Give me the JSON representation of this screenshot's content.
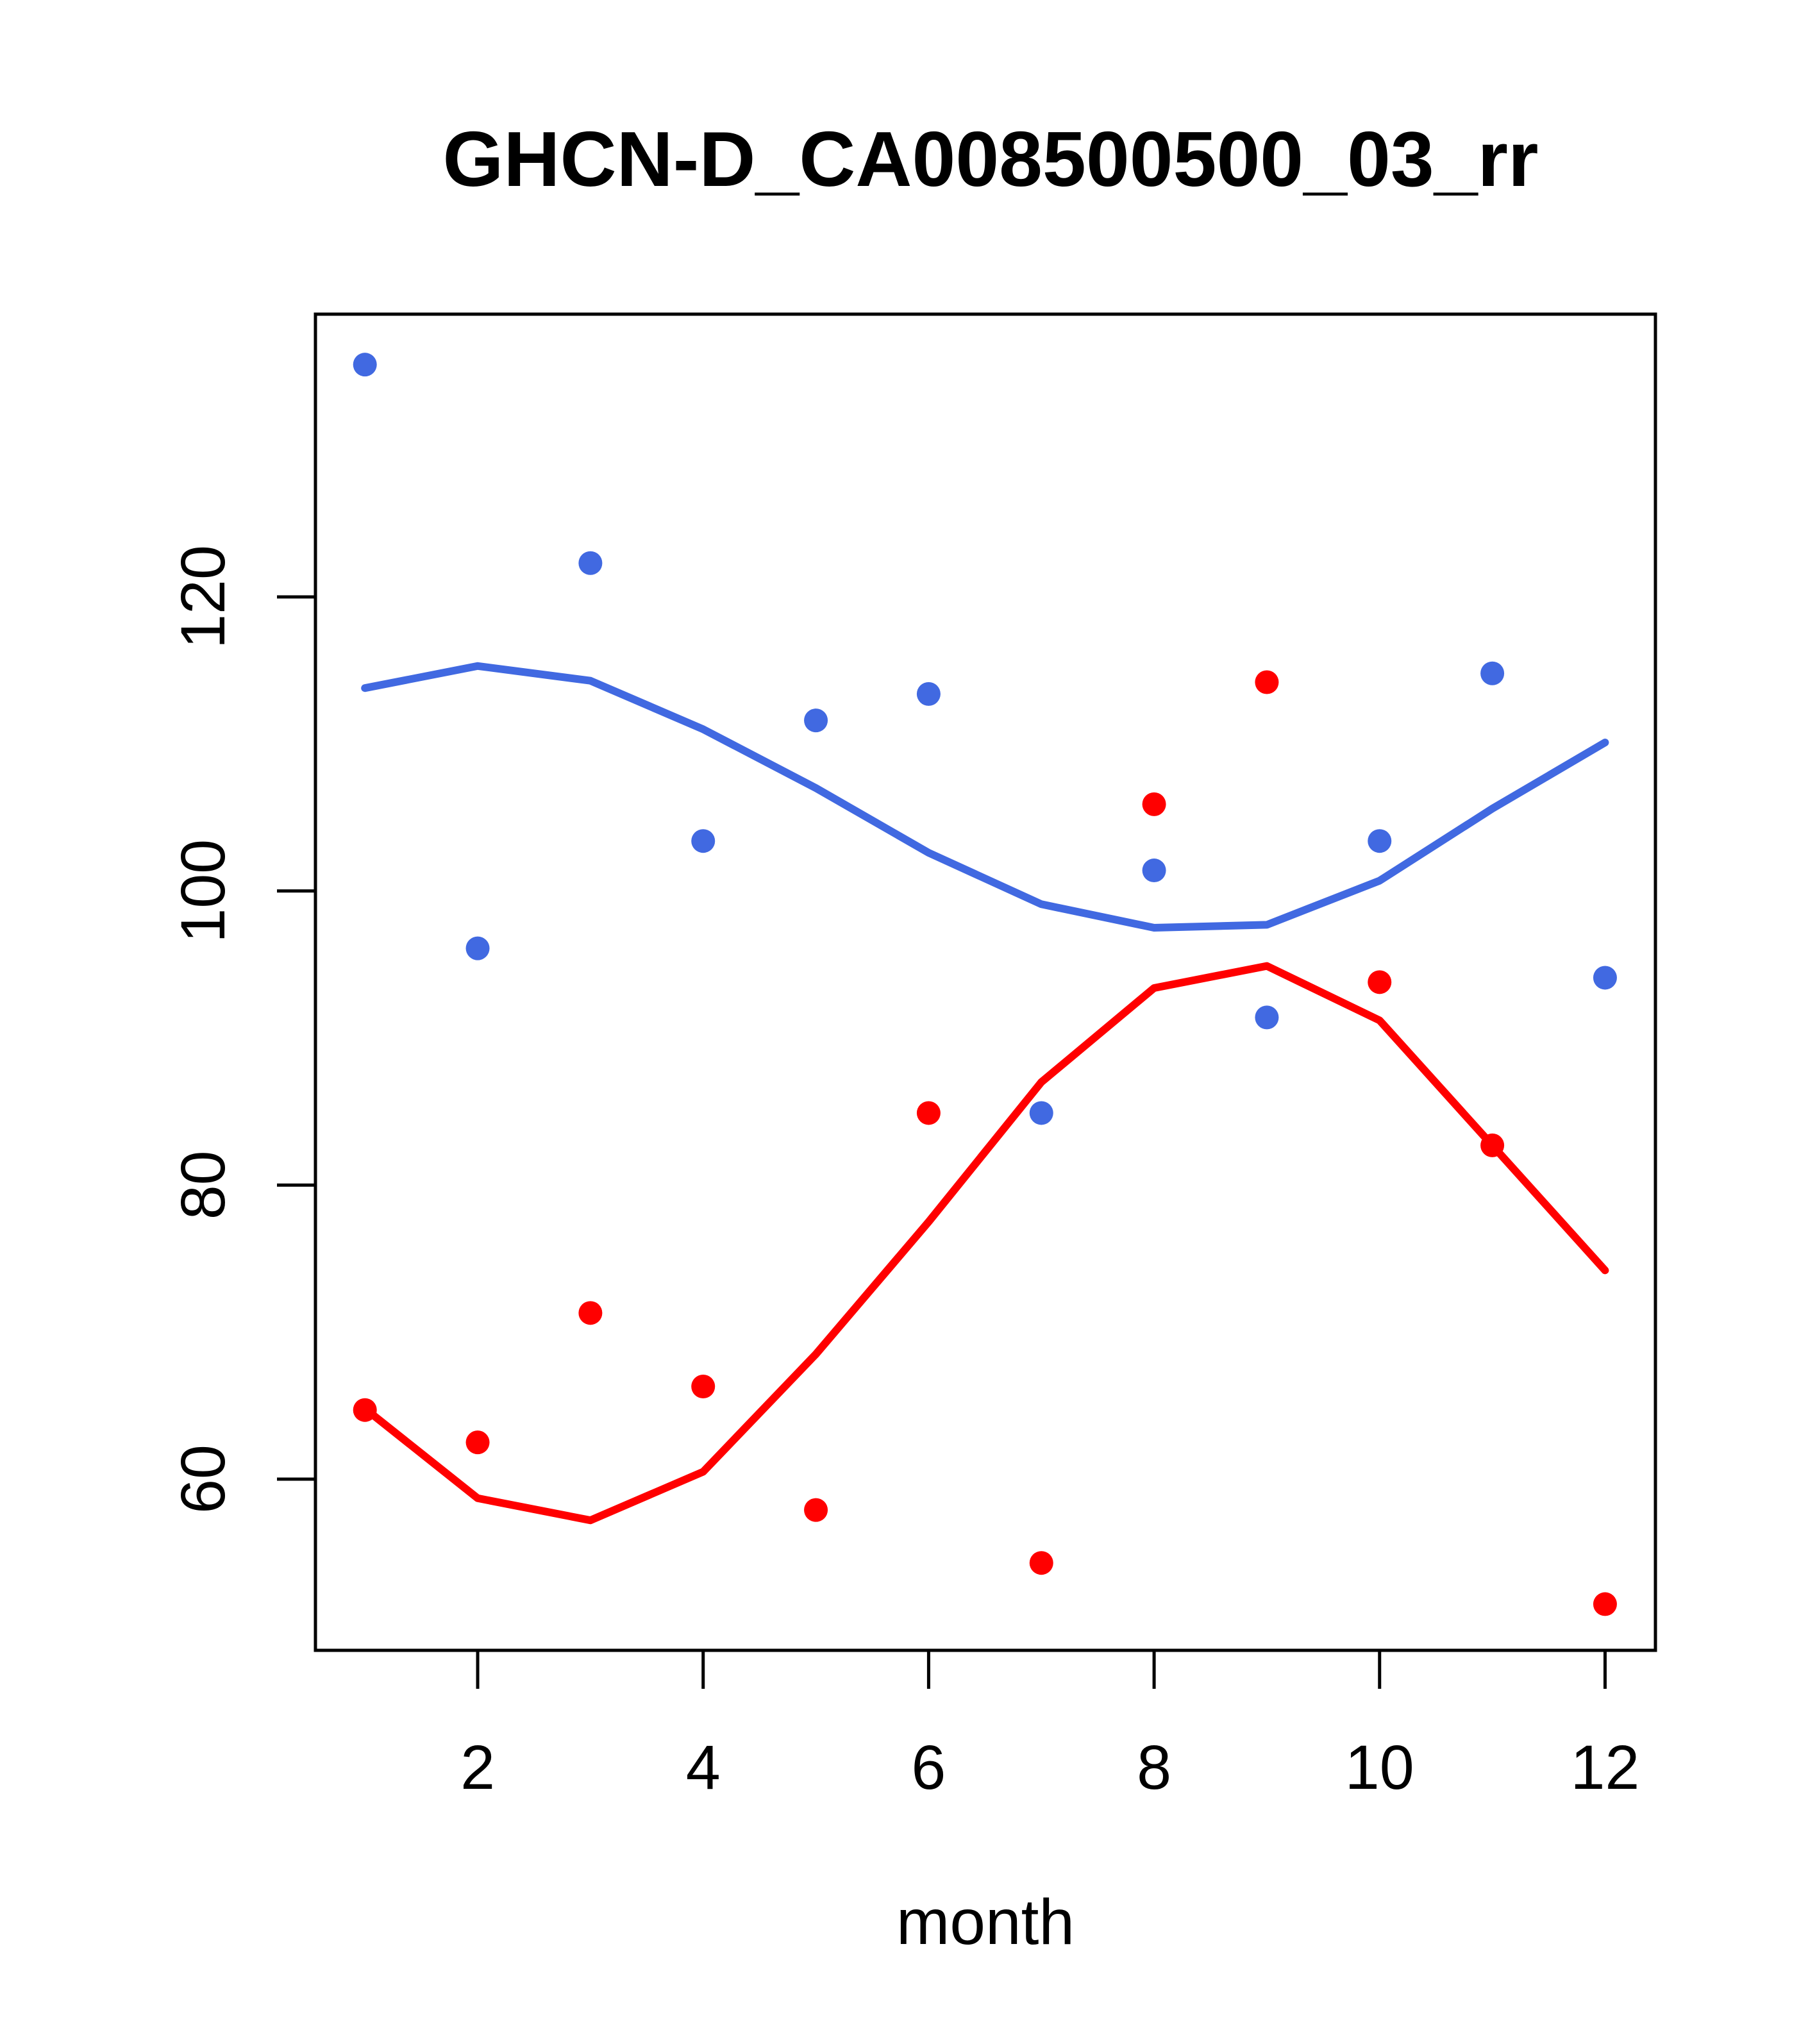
{
  "chart_data": {
    "type": "scatter",
    "title": "GHCN-D_CA008500500_03_rr",
    "xlabel": "month",
    "ylabel": "",
    "x": [
      1,
      2,
      3,
      4,
      5,
      6,
      7,
      8,
      9,
      10,
      11,
      12
    ],
    "x_ticks": [
      2,
      4,
      6,
      8,
      10,
      12
    ],
    "y_ticks": [
      60,
      80,
      100,
      120
    ],
    "xlim": [
      0.56,
      12.44
    ],
    "ylim": [
      48.4,
      139.2
    ],
    "grid": false,
    "legend": null,
    "series": [
      {
        "name": "blue-points",
        "kind": "points",
        "color": "#4169E1",
        "values": [
          135.8,
          96.1,
          122.3,
          103.4,
          111.6,
          113.4,
          84.9,
          101.4,
          91.4,
          103.4,
          114.8,
          94.1
        ]
      },
      {
        "name": "red-points",
        "kind": "points",
        "color": "#FF0000",
        "values": [
          64.7,
          62.5,
          71.3,
          66.3,
          57.9,
          84.9,
          54.3,
          105.9,
          114.2,
          93.8,
          82.7,
          51.5
        ]
      },
      {
        "name": "blue-smooth-line",
        "kind": "line",
        "color": "#4169E1",
        "values": [
          113.8,
          115.3,
          114.3,
          111.0,
          107.0,
          102.6,
          99.1,
          97.5,
          97.7,
          100.7,
          105.6,
          110.1
        ]
      },
      {
        "name": "red-smooth-line",
        "kind": "line",
        "color": "#FF0000",
        "values": [
          64.8,
          58.7,
          57.2,
          60.5,
          68.5,
          77.5,
          87.0,
          93.4,
          94.9,
          91.2,
          82.7,
          74.2
        ]
      }
    ],
    "colors": {
      "blue": "#4169E1",
      "red": "#FF0000",
      "axis": "#000000"
    }
  }
}
